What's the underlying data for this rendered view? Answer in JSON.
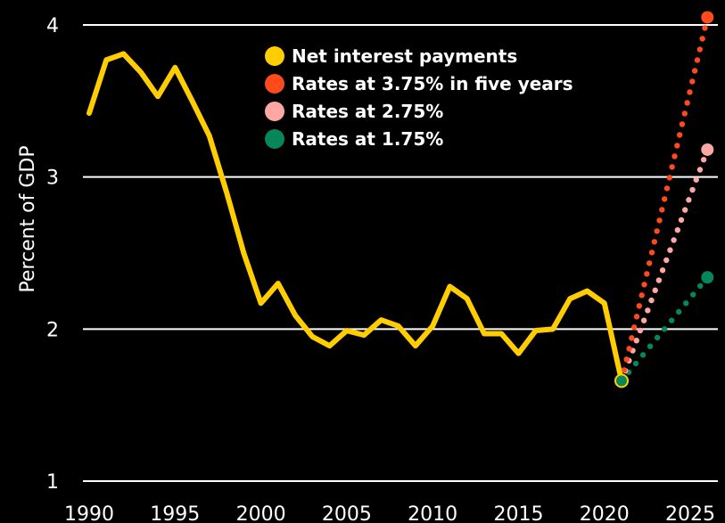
{
  "chart_data": {
    "type": "line",
    "title": "",
    "xlabel": "",
    "ylabel": "Percent of GDP",
    "xlim": [
      1989,
      2026.5
    ],
    "ylim": [
      1,
      4.15
    ],
    "xticks": [
      1990,
      1995,
      2000,
      2005,
      2010,
      2015,
      2020,
      2025
    ],
    "yticks": [
      1,
      2,
      3,
      4
    ],
    "grid": "horizontal",
    "legend_position": "top-center",
    "background": "#000000",
    "series": [
      {
        "name": "Net interest payments",
        "color": "#FFCD00",
        "style": "solid",
        "x": [
          1990,
          1991,
          1992,
          1993,
          1994,
          1995,
          1996,
          1997,
          1998,
          1999,
          2000,
          2001,
          2002,
          2003,
          2004,
          2005,
          2006,
          2007,
          2008,
          2009,
          2010,
          2011,
          2012,
          2013,
          2014,
          2015,
          2016,
          2017,
          2018,
          2019,
          2020,
          2021
        ],
        "values": [
          3.42,
          3.77,
          3.81,
          3.69,
          3.53,
          3.72,
          3.5,
          3.27,
          2.9,
          2.5,
          2.17,
          2.3,
          2.09,
          1.95,
          1.89,
          1.99,
          1.96,
          2.06,
          2.02,
          1.89,
          2.02,
          2.28,
          2.2,
          1.97,
          1.97,
          1.84,
          1.99,
          2.0,
          2.2,
          2.25,
          2.17,
          1.66
        ]
      },
      {
        "name": "Rates at 3.75% in five years",
        "color": "#FF4A1C",
        "style": "dotted",
        "x": [
          2021,
          2026
        ],
        "values": [
          1.66,
          4.05
        ]
      },
      {
        "name": "Rates at 2.75%",
        "color": "#FFA8A3",
        "style": "dotted",
        "x": [
          2021,
          2026
        ],
        "values": [
          1.66,
          3.18
        ]
      },
      {
        "name": "Rates at 1.75%",
        "color": "#05875B",
        "style": "dotted",
        "x": [
          2021,
          2026
        ],
        "values": [
          1.66,
          2.34
        ]
      }
    ]
  }
}
